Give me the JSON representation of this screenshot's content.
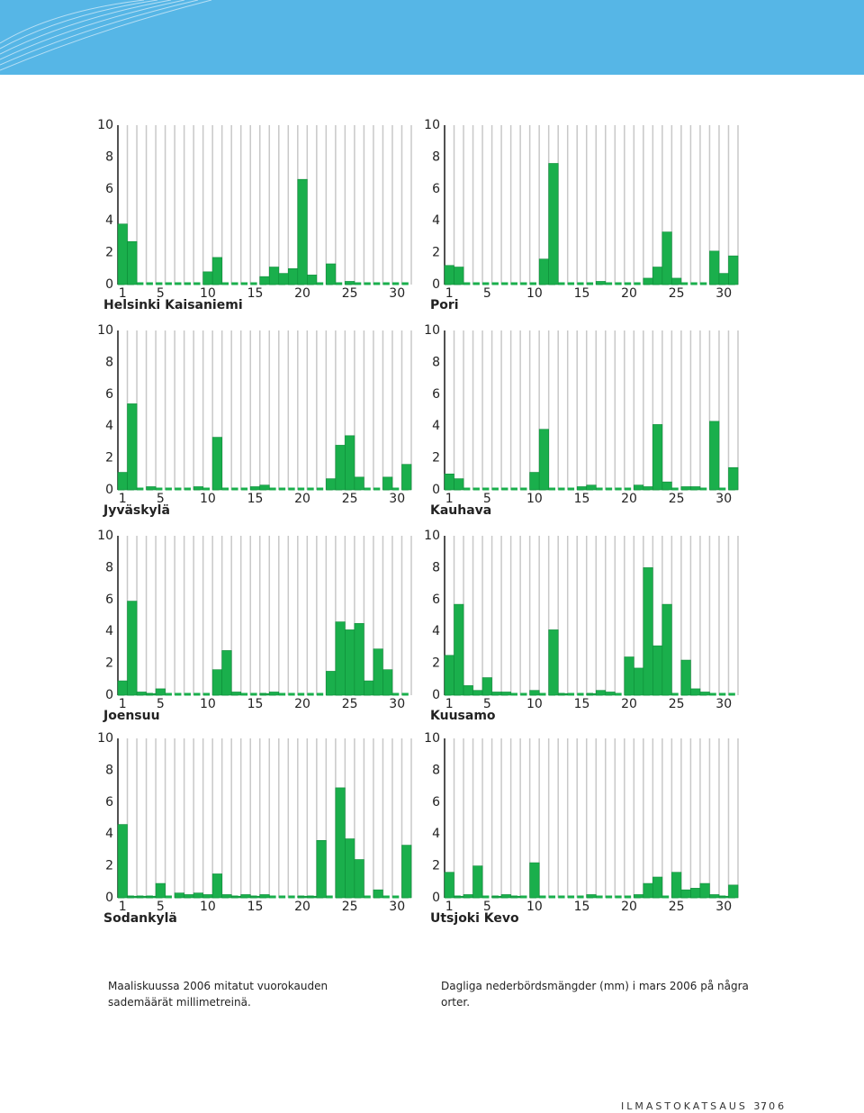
{
  "chart_data": [
    {
      "type": "bar",
      "title": "Helsinki Kaisaniemi",
      "color": "#1aaf4c",
      "x": [
        1,
        2,
        3,
        4,
        5,
        6,
        7,
        8,
        9,
        10,
        11,
        12,
        13,
        14,
        15,
        16,
        17,
        18,
        19,
        20,
        21,
        22,
        23,
        24,
        25,
        26,
        27,
        28,
        29,
        30,
        31
      ],
      "values": [
        3.8,
        2.7,
        0,
        0,
        0,
        0,
        0,
        0,
        0,
        0.8,
        1.7,
        0,
        0,
        0,
        0,
        0.5,
        1.1,
        0.7,
        1.0,
        6.6,
        0.6,
        0,
        1.3,
        0,
        0.2,
        0,
        0,
        0,
        0,
        0,
        0
      ],
      "xlim": [
        0.5,
        31.5
      ],
      "xticks": [
        1,
        5,
        10,
        15,
        20,
        25,
        30
      ],
      "ylim": [
        0,
        10
      ],
      "yticks": [
        0,
        2,
        4,
        6,
        8,
        10
      ]
    },
    {
      "type": "bar",
      "title": "Pori",
      "color": "#1aaf4c",
      "x": [
        1,
        2,
        3,
        4,
        5,
        6,
        7,
        8,
        9,
        10,
        11,
        12,
        13,
        14,
        15,
        16,
        17,
        18,
        19,
        20,
        21,
        22,
        23,
        24,
        25,
        26,
        27,
        28,
        29,
        30,
        31
      ],
      "values": [
        1.2,
        1.1,
        0,
        0,
        0,
        0,
        0,
        0,
        0,
        0,
        1.6,
        7.6,
        0,
        0,
        0,
        0,
        0.2,
        0,
        0,
        0,
        0,
        0.4,
        1.1,
        3.3,
        0.4,
        0,
        0,
        0,
        2.1,
        0.7,
        1.8
      ],
      "xlim": [
        0.5,
        31.5
      ],
      "xticks": [
        1,
        5,
        10,
        15,
        20,
        25,
        30
      ],
      "ylim": [
        0,
        10
      ],
      "yticks": [
        0,
        2,
        4,
        6,
        8,
        10
      ]
    },
    {
      "type": "bar",
      "title": "Jyväskylä",
      "color": "#1aaf4c",
      "x": [
        1,
        2,
        3,
        4,
        5,
        6,
        7,
        8,
        9,
        10,
        11,
        12,
        13,
        14,
        15,
        16,
        17,
        18,
        19,
        20,
        21,
        22,
        23,
        24,
        25,
        26,
        27,
        28,
        29,
        30,
        31
      ],
      "values": [
        1.1,
        5.4,
        0,
        0.2,
        0,
        0,
        0,
        0,
        0.2,
        0,
        3.3,
        0,
        0,
        0,
        0.2,
        0.3,
        0,
        0,
        0,
        0,
        0,
        0,
        0.7,
        2.8,
        3.4,
        0.8,
        0,
        0,
        0.8,
        0,
        1.6
      ],
      "xlim": [
        0.5,
        31.5
      ],
      "xticks": [
        1,
        5,
        10,
        15,
        20,
        25,
        30
      ],
      "ylim": [
        0,
        10
      ],
      "yticks": [
        0,
        2,
        4,
        6,
        8,
        10
      ]
    },
    {
      "type": "bar",
      "title": "Kauhava",
      "color": "#1aaf4c",
      "x": [
        1,
        2,
        3,
        4,
        5,
        6,
        7,
        8,
        9,
        10,
        11,
        12,
        13,
        14,
        15,
        16,
        17,
        18,
        19,
        20,
        21,
        22,
        23,
        24,
        25,
        26,
        27,
        28,
        29,
        30,
        31
      ],
      "values": [
        1.0,
        0.7,
        0,
        0,
        0,
        0,
        0,
        0,
        0,
        1.1,
        3.8,
        0,
        0,
        0,
        0.2,
        0.3,
        0,
        0,
        0,
        0,
        0.3,
        0.2,
        4.1,
        0.5,
        0,
        0.2,
        0.2,
        0,
        4.3,
        0,
        1.4
      ],
      "xlim": [
        0.5,
        31.5
      ],
      "xticks": [
        1,
        5,
        10,
        15,
        20,
        25,
        30
      ],
      "ylim": [
        0,
        10
      ],
      "yticks": [
        0,
        2,
        4,
        6,
        8,
        10
      ]
    },
    {
      "type": "bar",
      "title": "Joensuu",
      "color": "#1aaf4c",
      "x": [
        1,
        2,
        3,
        4,
        5,
        6,
        7,
        8,
        9,
        10,
        11,
        12,
        13,
        14,
        15,
        16,
        17,
        18,
        19,
        20,
        21,
        22,
        23,
        24,
        25,
        26,
        27,
        28,
        29,
        30,
        31
      ],
      "values": [
        0.9,
        5.9,
        0.2,
        0.1,
        0.4,
        0,
        0,
        0,
        0,
        0,
        1.6,
        2.8,
        0.2,
        0,
        0,
        0.1,
        0.2,
        0,
        0,
        0,
        0,
        0,
        1.5,
        4.6,
        4.1,
        4.5,
        0.9,
        2.9,
        1.6,
        0,
        0
      ],
      "xlim": [
        0.5,
        31.5
      ],
      "xticks": [
        1,
        5,
        10,
        15,
        20,
        25,
        30
      ],
      "ylim": [
        0,
        10
      ],
      "yticks": [
        0,
        2,
        4,
        6,
        8,
        10
      ]
    },
    {
      "type": "bar",
      "title": "Kuusamo",
      "color": "#1aaf4c",
      "x": [
        1,
        2,
        3,
        4,
        5,
        6,
        7,
        8,
        9,
        10,
        11,
        12,
        13,
        14,
        15,
        16,
        17,
        18,
        19,
        20,
        21,
        22,
        23,
        24,
        25,
        26,
        27,
        28,
        29,
        30,
        31
      ],
      "values": [
        2.5,
        5.7,
        0.6,
        0.3,
        1.1,
        0.2,
        0.2,
        0,
        0,
        0.3,
        0,
        4.1,
        0.1,
        0,
        0,
        0.1,
        0.3,
        0.2,
        0,
        2.4,
        1.7,
        8.0,
        3.1,
        5.7,
        0,
        2.2,
        0.4,
        0.2,
        0,
        0,
        0
      ],
      "xlim": [
        0.5,
        31.5
      ],
      "xticks": [
        1,
        5,
        10,
        15,
        20,
        25,
        30
      ],
      "ylim": [
        0,
        10
      ],
      "yticks": [
        0,
        2,
        4,
        6,
        8,
        10
      ]
    },
    {
      "type": "bar",
      "title": "Sodankylä",
      "color": "#1aaf4c",
      "x": [
        1,
        2,
        3,
        4,
        5,
        6,
        7,
        8,
        9,
        10,
        11,
        12,
        13,
        14,
        15,
        16,
        17,
        18,
        19,
        20,
        21,
        22,
        23,
        24,
        25,
        26,
        27,
        28,
        29,
        30,
        31
      ],
      "values": [
        4.6,
        0.1,
        0.1,
        0.1,
        0.9,
        0,
        0.3,
        0.2,
        0.3,
        0.2,
        1.5,
        0.2,
        0.1,
        0.2,
        0.1,
        0.2,
        0,
        0,
        0,
        0.1,
        0.1,
        3.6,
        0,
        6.9,
        3.7,
        2.4,
        0,
        0.5,
        0,
        0,
        3.3
      ],
      "xlim": [
        0.5,
        31.5
      ],
      "xticks": [
        1,
        5,
        10,
        15,
        20,
        25,
        30
      ],
      "ylim": [
        0,
        10
      ],
      "yticks": [
        0,
        2,
        4,
        6,
        8,
        10
      ]
    },
    {
      "type": "bar",
      "title": "Utsjoki Kevo",
      "color": "#1aaf4c",
      "x": [
        1,
        2,
        3,
        4,
        5,
        6,
        7,
        8,
        9,
        10,
        11,
        12,
        13,
        14,
        15,
        16,
        17,
        18,
        19,
        20,
        21,
        22,
        23,
        24,
        25,
        26,
        27,
        28,
        29,
        30,
        31
      ],
      "values": [
        1.6,
        0.1,
        0.2,
        2.0,
        0,
        0.1,
        0.2,
        0.1,
        0,
        2.2,
        0,
        0,
        0,
        0,
        0,
        0.2,
        0,
        0,
        0,
        0,
        0.2,
        0.9,
        1.3,
        0,
        1.6,
        0.5,
        0.6,
        0.9,
        0.2,
        0.1,
        0.8
      ],
      "xlim": [
        0.5,
        31.5
      ],
      "xticks": [
        1,
        5,
        10,
        15,
        20,
        25,
        30
      ],
      "ylim": [
        0,
        10
      ],
      "yticks": [
        0,
        2,
        4,
        6,
        8,
        10
      ]
    }
  ],
  "captions": {
    "finnish": "Maaliskuussa 2006 mitatut vuorokauden sademäärät millimetreinä.",
    "swedish": "Dagliga nederbördsmängder (mm) i mars 2006 på några orter."
  },
  "footer": {
    "publication": "ILMASTOKATSAUS 3/06",
    "page": "7"
  }
}
